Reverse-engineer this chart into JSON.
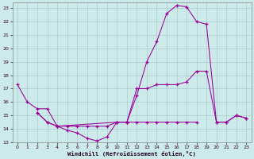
{
  "xlabel": "Windchill (Refroidissement éolien,°C)",
  "background_color": "#cceaea",
  "grid_color": "#aacccc",
  "line_color": "#990099",
  "xlim": [
    -0.5,
    23.5
  ],
  "ylim": [
    13,
    23.4
  ],
  "yticks": [
    13,
    14,
    15,
    16,
    17,
    18,
    19,
    20,
    21,
    22,
    23
  ],
  "xticks": [
    0,
    1,
    2,
    3,
    4,
    5,
    6,
    7,
    8,
    9,
    10,
    11,
    12,
    13,
    14,
    15,
    16,
    17,
    18,
    19,
    20,
    21,
    22,
    23
  ],
  "series1_x": [
    0,
    1,
    2,
    3,
    4,
    5,
    6,
    7,
    8,
    9,
    10,
    11,
    12,
    13,
    14,
    15,
    16,
    17,
    18,
    19,
    20,
    21,
    22,
    23
  ],
  "series1_y": [
    17.3,
    16.0,
    15.5,
    15.5,
    14.2,
    13.9,
    13.7,
    13.3,
    13.1,
    13.4,
    14.5,
    14.5,
    17.0,
    17.0,
    17.3,
    17.3,
    17.3,
    17.5,
    18.3,
    18.3,
    14.5,
    14.5,
    15.0,
    14.8
  ],
  "series2_x": [
    2,
    3,
    4,
    10,
    11,
    12,
    13,
    14,
    15,
    16,
    17,
    18,
    19,
    20,
    21,
    22,
    23
  ],
  "series2_y": [
    15.2,
    14.5,
    14.2,
    14.5,
    14.5,
    16.5,
    19.0,
    20.5,
    22.6,
    23.2,
    23.1,
    22.0,
    21.8,
    14.5,
    14.5,
    15.0,
    14.8
  ],
  "series3_x": [
    2,
    3,
    4,
    5,
    6,
    7,
    8,
    9,
    10,
    11,
    12,
    13,
    14,
    15,
    16,
    17,
    18
  ],
  "series3_y": [
    15.2,
    14.5,
    14.2,
    14.2,
    14.2,
    14.2,
    14.2,
    14.2,
    14.5,
    14.5,
    14.5,
    14.5,
    14.5,
    14.5,
    14.5,
    14.5,
    14.5
  ]
}
